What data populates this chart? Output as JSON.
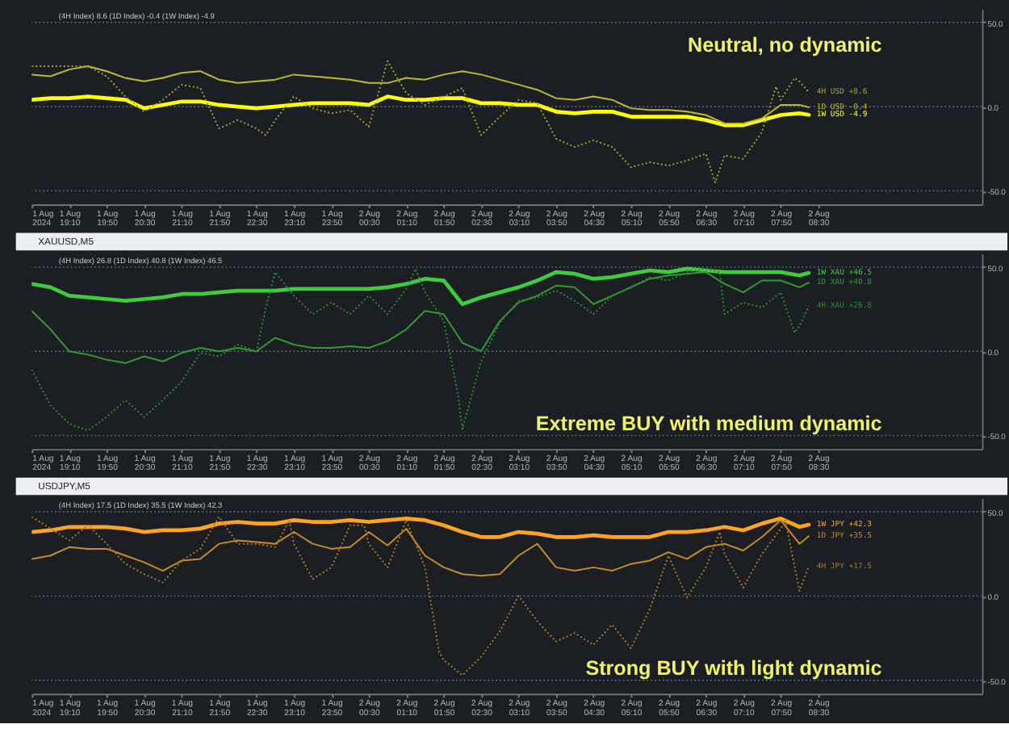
{
  "chart_data": [
    {
      "type": "line",
      "subtitle": "(4H Index) 8.6 (1D Index) -0.4 (1W Index) -4.9",
      "annotations": [
        "Neutral, no dynamic"
      ],
      "x": [
        "2024-08-01T18:30",
        "2024-08-01T18:50",
        "2024-08-01T19:10",
        "2024-08-01T19:30",
        "2024-08-01T19:50",
        "2024-08-01T20:10",
        "2024-08-01T20:30",
        "2024-08-01T20:50",
        "2024-08-01T21:10",
        "2024-08-01T21:30",
        "2024-08-01T21:50",
        "2024-08-01T22:10",
        "2024-08-01T22:30",
        "2024-08-01T22:50",
        "2024-08-01T23:10",
        "2024-08-01T23:30",
        "2024-08-01T23:50",
        "2024-08-02T00:10",
        "2024-08-02T00:30",
        "2024-08-02T00:50",
        "2024-08-02T01:10",
        "2024-08-02T01:30",
        "2024-08-02T01:50",
        "2024-08-02T02:10",
        "2024-08-02T02:30",
        "2024-08-02T02:50",
        "2024-08-02T03:10",
        "2024-08-02T03:30",
        "2024-08-02T03:50",
        "2024-08-02T04:10",
        "2024-08-02T04:30",
        "2024-08-02T04:50",
        "2024-08-02T05:10",
        "2024-08-02T05:30",
        "2024-08-02T05:50",
        "2024-08-02T06:10",
        "2024-08-02T06:30",
        "2024-08-02T06:50",
        "2024-08-02T07:10",
        "2024-08-02T07:30",
        "2024-08-02T07:50",
        "2024-08-02T08:10",
        "2024-08-02T08:20"
      ],
      "xlim": [
        "2024-08-01T18:30",
        "2024-08-02T11:25"
      ],
      "xticks": [
        {
          "value": "2024-08-01T18:30",
          "label": "1 Aug 2024"
        },
        {
          "value": "2024-08-01T19:10",
          "label": "1 Aug 19:10"
        },
        {
          "value": "2024-08-01T19:50",
          "label": "1 Aug 19:50"
        },
        {
          "value": "2024-08-01T20:30",
          "label": "1 Aug 20:30"
        },
        {
          "value": "2024-08-01T21:10",
          "label": "1 Aug 21:10"
        },
        {
          "value": "2024-08-01T21:50",
          "label": "1 Aug 21:50"
        },
        {
          "value": "2024-08-01T22:30",
          "label": "1 Aug 22:30"
        },
        {
          "value": "2024-08-01T23:10",
          "label": "1 Aug 23:10"
        },
        {
          "value": "2024-08-01T23:50",
          "label": "1 Aug 23:50"
        },
        {
          "value": "2024-08-02T00:30",
          "label": "2 Aug 00:30"
        },
        {
          "value": "2024-08-02T01:10",
          "label": "2 Aug 01:10"
        },
        {
          "value": "2024-08-02T01:50",
          "label": "2 Aug 01:50"
        },
        {
          "value": "2024-08-02T02:30",
          "label": "2 Aug 02:30"
        },
        {
          "value": "2024-08-02T03:10",
          "label": "2 Aug 03:10"
        },
        {
          "value": "2024-08-02T03:50",
          "label": "2 Aug 03:50"
        },
        {
          "value": "2024-08-02T04:30",
          "label": "2 Aug 04:30"
        },
        {
          "value": "2024-08-02T05:10",
          "label": "2 Aug 05:10"
        },
        {
          "value": "2024-08-02T05:50",
          "label": "2 Aug 05:50"
        },
        {
          "value": "2024-08-02T06:30",
          "label": "2 Aug 06:30"
        },
        {
          "value": "2024-08-02T07:10",
          "label": "2 Aug 07:10"
        },
        {
          "value": "2024-08-02T07:50",
          "label": "2 Aug 07:50"
        },
        {
          "value": "2024-08-02T08:30",
          "label": "2 Aug 08:30"
        }
      ],
      "ylim": [
        -58,
        58
      ],
      "yticks": [
        {
          "value": 50,
          "label": "50.0"
        },
        {
          "value": 0,
          "label": "0.0"
        },
        {
          "value": -50,
          "label": "-50.0"
        }
      ],
      "ref_lines": [
        {
          "axis": "y",
          "value": 50,
          "color": "#56728c",
          "line_style": "dotted"
        },
        {
          "axis": "y",
          "value": 0,
          "color": "#56728c",
          "line_style": "dotted"
        },
        {
          "axis": "y",
          "value": -50,
          "color": "#56728c",
          "line_style": "dotted"
        }
      ],
      "series": [
        {
          "name": "1W USD -4.9",
          "color": "#ffff00",
          "line_style": "solid",
          "values": [
            4,
            5,
            5,
            6,
            5,
            4,
            -1,
            1,
            3,
            3,
            1,
            0,
            -1,
            0,
            1,
            2,
            2,
            2,
            1,
            6,
            4,
            4,
            5,
            5,
            2,
            2,
            1,
            1,
            -3,
            -4,
            -3,
            -3,
            -6,
            -6,
            -6,
            -6,
            -8,
            -11,
            -11,
            -8,
            -5,
            -4,
            -4.9
          ]
        },
        {
          "name": "1D USD -0.4",
          "color": "#bcbc2c",
          "line_style": "solid",
          "values": [
            19,
            18,
            22,
            24,
            21,
            17,
            15,
            17,
            20,
            21,
            16,
            14,
            15,
            16,
            19,
            18,
            17,
            16,
            14,
            14,
            17,
            16,
            19,
            21,
            19,
            16,
            13,
            10,
            5,
            4,
            6,
            4,
            -1,
            -2,
            -2,
            -3,
            -5,
            -10,
            -10,
            -7,
            1,
            1,
            -0.4
          ]
        },
        {
          "name": "4H USD +8.6",
          "color": "#a4a42a",
          "line_style": "dotted",
          "x": [
            "2024-08-01T18:30",
            "2024-08-01T18:50",
            "2024-08-01T19:10",
            "2024-08-01T19:30",
            "2024-08-01T19:50",
            "2024-08-01T20:10",
            "2024-08-01T20:30",
            "2024-08-01T20:50",
            "2024-08-01T21:10",
            "2024-08-01T21:30",
            "2024-08-01T21:50",
            "2024-08-01T22:10",
            "2024-08-01T22:30",
            "2024-08-01T22:40",
            "2024-08-01T22:50",
            "2024-08-01T23:10",
            "2024-08-01T23:30",
            "2024-08-01T23:50",
            "2024-08-02T00:10",
            "2024-08-02T00:30",
            "2024-08-02T00:50",
            "2024-08-02T01:10",
            "2024-08-02T01:30",
            "2024-08-02T01:50",
            "2024-08-02T02:10",
            "2024-08-02T02:30",
            "2024-08-02T02:50",
            "2024-08-02T03:10",
            "2024-08-02T03:30",
            "2024-08-02T03:50",
            "2024-08-02T04:10",
            "2024-08-02T04:30",
            "2024-08-02T04:50",
            "2024-08-02T05:10",
            "2024-08-02T05:30",
            "2024-08-02T05:50",
            "2024-08-02T06:10",
            "2024-08-02T06:30",
            "2024-08-02T06:40",
            "2024-08-02T06:50",
            "2024-08-02T07:10",
            "2024-08-02T07:30",
            "2024-08-02T07:45",
            "2024-08-02T07:50",
            "2024-08-02T08:05",
            "2024-08-02T08:10",
            "2024-08-02T08:20"
          ],
          "values": [
            24,
            24,
            24,
            24,
            18,
            6,
            -3,
            4,
            13,
            11,
            -13,
            -8,
            -13,
            -17,
            -8,
            6,
            -1,
            -4,
            -2,
            -12,
            27,
            8,
            1,
            6,
            11,
            -17,
            -6,
            4,
            2,
            -19,
            -24,
            -20,
            -24,
            -36,
            -33,
            -35,
            -32,
            -28,
            -45,
            -29,
            -31,
            -15,
            12,
            4,
            17,
            15,
            8.6
          ]
        }
      ]
    },
    {
      "type": "line",
      "title": "XAUUSD,M5",
      "subtitle": "(4H Index) 26.8 (1D Index) 40.8 (1W Index) 46.5",
      "annotations": [
        "Extreme BUY with medium dynamic"
      ],
      "x": [
        "2024-08-01T18:30",
        "2024-08-01T18:50",
        "2024-08-01T19:10",
        "2024-08-01T19:30",
        "2024-08-01T19:50",
        "2024-08-01T20:10",
        "2024-08-01T20:30",
        "2024-08-01T20:50",
        "2024-08-01T21:10",
        "2024-08-01T21:30",
        "2024-08-01T21:50",
        "2024-08-01T22:10",
        "2024-08-01T22:30",
        "2024-08-01T22:50",
        "2024-08-01T23:10",
        "2024-08-01T23:30",
        "2024-08-01T23:50",
        "2024-08-02T00:10",
        "2024-08-02T00:30",
        "2024-08-02T00:50",
        "2024-08-02T01:10",
        "2024-08-02T01:30",
        "2024-08-02T01:50",
        "2024-08-02T02:10",
        "2024-08-02T02:30",
        "2024-08-02T02:50",
        "2024-08-02T03:10",
        "2024-08-02T03:30",
        "2024-08-02T03:50",
        "2024-08-02T04:10",
        "2024-08-02T04:30",
        "2024-08-02T04:50",
        "2024-08-02T05:10",
        "2024-08-02T05:30",
        "2024-08-02T05:50",
        "2024-08-02T06:10",
        "2024-08-02T06:30",
        "2024-08-02T06:50",
        "2024-08-02T07:10",
        "2024-08-02T07:30",
        "2024-08-02T07:50",
        "2024-08-02T08:10",
        "2024-08-02T08:20"
      ],
      "xlim": [
        "2024-08-01T18:30",
        "2024-08-02T11:25"
      ],
      "xticks": [
        {
          "value": "2024-08-01T18:30",
          "label": "1 Aug 2024"
        },
        {
          "value": "2024-08-01T19:10",
          "label": "1 Aug 19:10"
        },
        {
          "value": "2024-08-01T19:50",
          "label": "1 Aug 19:50"
        },
        {
          "value": "2024-08-01T20:30",
          "label": "1 Aug 20:30"
        },
        {
          "value": "2024-08-01T21:10",
          "label": "1 Aug 21:10"
        },
        {
          "value": "2024-08-01T21:50",
          "label": "1 Aug 21:50"
        },
        {
          "value": "2024-08-01T22:30",
          "label": "1 Aug 22:30"
        },
        {
          "value": "2024-08-01T23:10",
          "label": "1 Aug 23:10"
        },
        {
          "value": "2024-08-01T23:50",
          "label": "1 Aug 23:50"
        },
        {
          "value": "2024-08-02T00:30",
          "label": "2 Aug 00:30"
        },
        {
          "value": "2024-08-02T01:10",
          "label": "2 Aug 01:10"
        },
        {
          "value": "2024-08-02T01:50",
          "label": "2 Aug 01:50"
        },
        {
          "value": "2024-08-02T02:30",
          "label": "2 Aug 02:30"
        },
        {
          "value": "2024-08-02T03:10",
          "label": "2 Aug 03:10"
        },
        {
          "value": "2024-08-02T03:50",
          "label": "2 Aug 03:50"
        },
        {
          "value": "2024-08-02T04:30",
          "label": "2 Aug 04:30"
        },
        {
          "value": "2024-08-02T05:10",
          "label": "2 Aug 05:10"
        },
        {
          "value": "2024-08-02T05:50",
          "label": "2 Aug 05:50"
        },
        {
          "value": "2024-08-02T06:30",
          "label": "2 Aug 06:30"
        },
        {
          "value": "2024-08-02T07:10",
          "label": "2 Aug 07:10"
        },
        {
          "value": "2024-08-02T07:50",
          "label": "2 Aug 07:50"
        },
        {
          "value": "2024-08-02T08:30",
          "label": "2 Aug 08:30"
        }
      ],
      "ylim": [
        -58,
        58
      ],
      "yticks": [
        {
          "value": 50,
          "label": "50.0"
        },
        {
          "value": 0,
          "label": "0.0"
        },
        {
          "value": -50,
          "label": "-50.0"
        }
      ],
      "ref_lines": [
        {
          "axis": "y",
          "value": 50,
          "color": "#56728c",
          "line_style": "dotted"
        },
        {
          "axis": "y",
          "value": 0,
          "color": "#56728c",
          "line_style": "dotted"
        },
        {
          "axis": "y",
          "value": -50,
          "color": "#56728c",
          "line_style": "dotted"
        }
      ],
      "series": [
        {
          "name": "1W XAU +46.5",
          "color": "#3ecc3e",
          "line_style": "solid",
          "values": [
            40,
            38,
            33,
            32,
            31,
            30,
            31,
            32,
            34,
            34,
            35,
            36,
            36,
            36,
            37,
            37,
            37,
            37,
            37,
            38,
            40,
            43,
            42,
            28,
            32,
            35,
            38,
            42,
            47,
            46,
            43,
            44,
            46,
            48,
            47,
            49,
            48,
            47,
            47,
            47,
            47,
            45,
            46.5
          ]
        },
        {
          "name": "1D XAU +40.8",
          "color": "#2f9e2f",
          "line_style": "solid",
          "values": [
            24,
            13,
            0,
            -2,
            -5,
            -7,
            -3,
            -6,
            -1,
            2,
            0,
            2,
            0,
            8,
            4,
            2,
            2,
            3,
            2,
            6,
            13,
            24,
            22,
            5,
            0,
            18,
            29,
            33,
            39,
            38,
            28,
            33,
            38,
            43,
            45,
            46,
            47,
            40,
            35,
            42,
            42,
            38,
            40.8
          ]
        },
        {
          "name": "4H XAU +26.8",
          "color": "#2e8c2e",
          "line_style": "dotted",
          "x": [
            "2024-08-01T18:30",
            "2024-08-01T18:50",
            "2024-08-01T19:10",
            "2024-08-01T19:30",
            "2024-08-01T19:50",
            "2024-08-01T20:10",
            "2024-08-01T20:30",
            "2024-08-01T20:50",
            "2024-08-01T21:10",
            "2024-08-01T21:30",
            "2024-08-01T21:50",
            "2024-08-01T22:10",
            "2024-08-01T22:30",
            "2024-08-01T22:40",
            "2024-08-01T22:50",
            "2024-08-01T23:10",
            "2024-08-01T23:30",
            "2024-08-01T23:50",
            "2024-08-02T00:10",
            "2024-08-02T00:30",
            "2024-08-02T00:50",
            "2024-08-02T01:10",
            "2024-08-02T01:20",
            "2024-08-02T01:30",
            "2024-08-02T01:50",
            "2024-08-02T02:05",
            "2024-08-02T02:10",
            "2024-08-02T02:30",
            "2024-08-02T02:50",
            "2024-08-02T03:10",
            "2024-08-02T03:30",
            "2024-08-02T03:50",
            "2024-08-02T04:10",
            "2024-08-02T04:30",
            "2024-08-02T04:50",
            "2024-08-02T05:10",
            "2024-08-02T05:30",
            "2024-08-02T05:50",
            "2024-08-02T06:10",
            "2024-08-02T06:30",
            "2024-08-02T06:45",
            "2024-08-02T06:50",
            "2024-08-02T07:10",
            "2024-08-02T07:30",
            "2024-08-02T07:50",
            "2024-08-02T08:05",
            "2024-08-02T08:10",
            "2024-08-02T08:20"
          ],
          "values": [
            -11,
            -32,
            -43,
            -47,
            -39,
            -29,
            -39,
            -29,
            -18,
            -1,
            -3,
            4,
            0,
            26,
            47,
            33,
            22,
            29,
            22,
            33,
            22,
            37,
            49,
            35,
            18,
            -25,
            -46,
            -6,
            17,
            30,
            32,
            36,
            30,
            22,
            33,
            38,
            44,
            42,
            47,
            49,
            47,
            22,
            29,
            26,
            35,
            11,
            15,
            26.8
          ]
        }
      ]
    },
    {
      "type": "line",
      "title": "USDJPY,M5",
      "subtitle": "(4H Index) 17.5 (1D Index) 35.5 (1W Index) 42.3",
      "annotations": [
        "Strong BUY with light dynamic"
      ],
      "x": [
        "2024-08-01T18:30",
        "2024-08-01T18:50",
        "2024-08-01T19:10",
        "2024-08-01T19:30",
        "2024-08-01T19:50",
        "2024-08-01T20:10",
        "2024-08-01T20:30",
        "2024-08-01T20:50",
        "2024-08-01T21:10",
        "2024-08-01T21:30",
        "2024-08-01T21:50",
        "2024-08-01T22:10",
        "2024-08-01T22:30",
        "2024-08-01T22:50",
        "2024-08-01T23:10",
        "2024-08-01T23:30",
        "2024-08-01T23:50",
        "2024-08-02T00:10",
        "2024-08-02T00:30",
        "2024-08-02T00:50",
        "2024-08-02T01:10",
        "2024-08-02T01:30",
        "2024-08-02T01:50",
        "2024-08-02T02:10",
        "2024-08-02T02:30",
        "2024-08-02T02:50",
        "2024-08-02T03:10",
        "2024-08-02T03:30",
        "2024-08-02T03:50",
        "2024-08-02T04:10",
        "2024-08-02T04:30",
        "2024-08-02T04:50",
        "2024-08-02T05:10",
        "2024-08-02T05:30",
        "2024-08-02T05:50",
        "2024-08-02T06:10",
        "2024-08-02T06:30",
        "2024-08-02T06:50",
        "2024-08-02T07:10",
        "2024-08-02T07:30",
        "2024-08-02T07:50",
        "2024-08-02T08:10",
        "2024-08-02T08:20"
      ],
      "xlim": [
        "2024-08-01T18:30",
        "2024-08-02T11:25"
      ],
      "xticks": [
        {
          "value": "2024-08-01T18:30",
          "label": "1 Aug 2024"
        },
        {
          "value": "2024-08-01T19:10",
          "label": "1 Aug 19:10"
        },
        {
          "value": "2024-08-01T19:50",
          "label": "1 Aug 19:50"
        },
        {
          "value": "2024-08-01T20:30",
          "label": "1 Aug 20:30"
        },
        {
          "value": "2024-08-01T21:10",
          "label": "1 Aug 21:10"
        },
        {
          "value": "2024-08-01T21:50",
          "label": "1 Aug 21:50"
        },
        {
          "value": "2024-08-01T22:30",
          "label": "1 Aug 22:30"
        },
        {
          "value": "2024-08-01T23:10",
          "label": "1 Aug 23:10"
        },
        {
          "value": "2024-08-01T23:50",
          "label": "1 Aug 23:50"
        },
        {
          "value": "2024-08-02T00:30",
          "label": "2 Aug 00:30"
        },
        {
          "value": "2024-08-02T01:10",
          "label": "2 Aug 01:10"
        },
        {
          "value": "2024-08-02T01:50",
          "label": "2 Aug 01:50"
        },
        {
          "value": "2024-08-02T02:30",
          "label": "2 Aug 02:30"
        },
        {
          "value": "2024-08-02T03:10",
          "label": "2 Aug 03:10"
        },
        {
          "value": "2024-08-02T03:50",
          "label": "2 Aug 03:50"
        },
        {
          "value": "2024-08-02T04:30",
          "label": "2 Aug 04:30"
        },
        {
          "value": "2024-08-02T05:10",
          "label": "2 Aug 05:10"
        },
        {
          "value": "2024-08-02T05:50",
          "label": "2 Aug 05:50"
        },
        {
          "value": "2024-08-02T06:30",
          "label": "2 Aug 06:30"
        },
        {
          "value": "2024-08-02T07:10",
          "label": "2 Aug 07:10"
        },
        {
          "value": "2024-08-02T07:50",
          "label": "2 Aug 07:50"
        },
        {
          "value": "2024-08-02T08:30",
          "label": "2 Aug 08:30"
        }
      ],
      "ylim": [
        -58,
        58
      ],
      "yticks": [
        {
          "value": 50,
          "label": "50.0"
        },
        {
          "value": 0,
          "label": "0.0"
        },
        {
          "value": -50,
          "label": "-50.0"
        }
      ],
      "ref_lines": [
        {
          "axis": "y",
          "value": 50,
          "color": "#56728c",
          "line_style": "dotted"
        },
        {
          "axis": "y",
          "value": 0,
          "color": "#56728c",
          "line_style": "dotted"
        },
        {
          "axis": "y",
          "value": -50,
          "color": "#56728c",
          "line_style": "dotted"
        }
      ],
      "series": [
        {
          "name": "1W JPY +42.3",
          "color": "#ffa41c",
          "line_style": "solid",
          "values": [
            38,
            39,
            41,
            41,
            41,
            40,
            38,
            39,
            39,
            40,
            43,
            44,
            43,
            43,
            45,
            44,
            44,
            45,
            44,
            45,
            46,
            45,
            42,
            38,
            35,
            35,
            38,
            37,
            35,
            35,
            36,
            35,
            35,
            35,
            38,
            38,
            39,
            41,
            39,
            43,
            46,
            41,
            42.3
          ]
        },
        {
          "name": "1D JPY +35.5",
          "color": "#c88c20",
          "line_style": "solid",
          "values": [
            22,
            24,
            29,
            28,
            28,
            24,
            20,
            15,
            21,
            22,
            31,
            33,
            32,
            31,
            38,
            31,
            28,
            29,
            38,
            30,
            40,
            24,
            17,
            13,
            12,
            13,
            24,
            31,
            17,
            15,
            17,
            15,
            19,
            21,
            26,
            22,
            29,
            31,
            27,
            35,
            45,
            31,
            35.5
          ]
        },
        {
          "name": "4H JPY +17.5",
          "color": "#b07a22",
          "line_style": "dotted",
          "x": [
            "2024-08-01T18:30",
            "2024-08-01T18:50",
            "2024-08-01T19:10",
            "2024-08-01T19:30",
            "2024-08-01T19:50",
            "2024-08-01T20:10",
            "2024-08-01T20:30",
            "2024-08-01T20:50",
            "2024-08-01T21:10",
            "2024-08-01T21:30",
            "2024-08-01T21:50",
            "2024-08-01T22:10",
            "2024-08-01T22:30",
            "2024-08-01T22:50",
            "2024-08-01T23:05",
            "2024-08-01T23:10",
            "2024-08-01T23:30",
            "2024-08-01T23:50",
            "2024-08-02T00:10",
            "2024-08-02T00:25",
            "2024-08-02T00:30",
            "2024-08-02T00:50",
            "2024-08-02T01:10",
            "2024-08-02T01:30",
            "2024-08-02T01:45",
            "2024-08-02T01:50",
            "2024-08-02T02:10",
            "2024-08-02T02:30",
            "2024-08-02T02:50",
            "2024-08-02T03:10",
            "2024-08-02T03:30",
            "2024-08-02T03:50",
            "2024-08-02T04:10",
            "2024-08-02T04:30",
            "2024-08-02T04:50",
            "2024-08-02T05:10",
            "2024-08-02T05:30",
            "2024-08-02T05:50",
            "2024-08-02T06:10",
            "2024-08-02T06:30",
            "2024-08-02T06:45",
            "2024-08-02T06:50",
            "2024-08-02T07:10",
            "2024-08-02T07:30",
            "2024-08-02T07:50",
            "2024-08-02T07:55",
            "2024-08-02T08:10",
            "2024-08-02T08:20"
          ],
          "values": [
            47,
            40,
            33,
            42,
            31,
            19,
            13,
            8,
            21,
            28,
            47,
            31,
            31,
            29,
            45,
            31,
            10,
            17,
            42,
            42,
            31,
            17,
            45,
            17,
            -33,
            -38,
            -47,
            -36,
            -21,
            0,
            -15,
            -27,
            -22,
            -29,
            -17,
            -31,
            -8,
            24,
            -1,
            17,
            38,
            25,
            5,
            25,
            40,
            45,
            3,
            17.5
          ]
        }
      ]
    }
  ]
}
